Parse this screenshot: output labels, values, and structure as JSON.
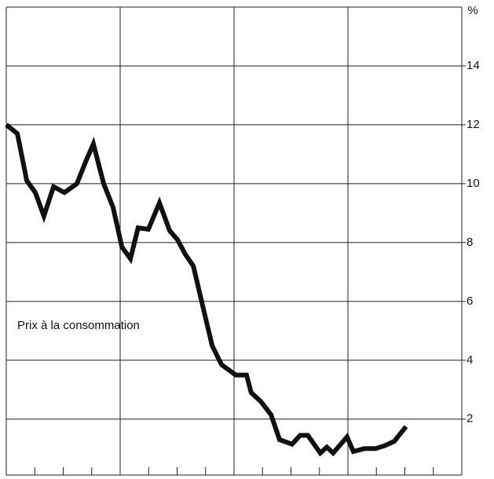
{
  "chart_data": {
    "type": "line",
    "y_unit": "%",
    "annotation": "Prix à la consommation",
    "x": [
      0,
      0.39,
      0.72,
      1.02,
      1.32,
      1.66,
      2.04,
      2.48,
      2.81,
      3.06,
      3.42,
      3.75,
      4.06,
      4.36,
      4.63,
      4.99,
      5.38,
      5.74,
      6.01,
      6.29,
      6.57,
      6.9,
      7.23,
      7.56,
      8.06,
      8.44,
      8.6,
      8.94,
      9.3,
      9.6,
      10.04,
      10.32,
      10.59,
      11.03,
      11.26,
      11.48,
      11.97,
      12.19,
      12.58,
      12.97,
      13.3,
      13.63,
      14.04
    ],
    "series": [
      {
        "name": "Prix à la consommation",
        "color": "#111111",
        "values": [
          12.0,
          11.7,
          10.1,
          9.7,
          8.9,
          9.9,
          9.7,
          10.0,
          10.8,
          11.35,
          10.0,
          9.2,
          7.85,
          7.45,
          8.5,
          8.45,
          9.35,
          8.4,
          8.1,
          7.6,
          7.2,
          5.85,
          4.5,
          3.85,
          3.5,
          3.5,
          2.9,
          2.6,
          2.15,
          1.3,
          1.15,
          1.45,
          1.45,
          0.85,
          1.05,
          0.85,
          1.4,
          0.9,
          1.0,
          1.0,
          1.1,
          1.25,
          1.75
        ]
      }
    ],
    "xlim": [
      0,
      16
    ],
    "xticks": [
      0,
      4,
      8,
      12,
      16
    ],
    "xminor_ticks": [
      0,
      1,
      2,
      3,
      4,
      5,
      6,
      7,
      8,
      9,
      10,
      11,
      12,
      13,
      14,
      15,
      16
    ],
    "ylim": [
      0.1,
      16
    ],
    "yticks": [
      2,
      4,
      6,
      8,
      10,
      12,
      14
    ],
    "grid": true
  }
}
